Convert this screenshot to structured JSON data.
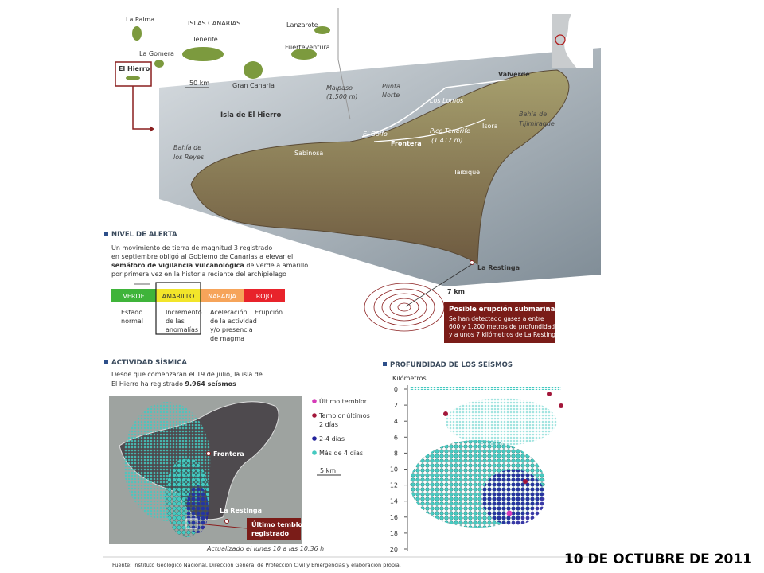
{
  "inset": {
    "title": "ISLAS CANARIAS",
    "islands": [
      "La Palma",
      "Lanzarote",
      "Tenerife",
      "La Gomera",
      "Fuerteventura",
      "El Hierro",
      "Gran Canaria"
    ],
    "scale": "50 km"
  },
  "island_map": {
    "title": "Isla de El Hierro",
    "places": {
      "malpaso": "Malpaso",
      "malpaso_alt": "(1.500 m)",
      "punta_norte_1": "Punta",
      "punta_norte_2": "Norte",
      "valverde": "Valverde",
      "los_lomos": "Los Lomos",
      "tijimiraque_1": "Bahía de",
      "tijimiraque_2": "Tijimiraque",
      "el_golfo": "El Golfo",
      "pico": "Pico Tenerife",
      "pico_alt": "(1.417 m)",
      "frontera": "Frontera",
      "isora": "Isora",
      "reyes_1": "Bahía de",
      "reyes_2": "los Reyes",
      "sabinosa": "Sabinosa",
      "taibique": "Taibique",
      "la_restinga": "La Restinga"
    },
    "distance": "7 km",
    "eruption": {
      "title": "Posible erupción submarina",
      "lines": [
        "Se han detectado gases a  entre",
        "600 y 1.200 metros de profundidad",
        "y a unos 7 kilómetros de La Restinga."
      ]
    }
  },
  "alert": {
    "title": "NIVEL DE ALERTA",
    "line1": "Un movimiento de tierra de magnitud 3 registrado",
    "line2": "en septiembre obligó al Gobierno de Canarias a elevar el",
    "line3_bold": "semáforo de vigilancia vulcanológica",
    "line3": " de verde a amarillo",
    "line4": "por primera vez en la historia reciente del archipiélago",
    "levels": [
      {
        "name": "VERDE",
        "color": "#3fb43a",
        "text": [
          "Estado",
          "normal"
        ]
      },
      {
        "name": "AMARILLO",
        "color": "#f2e52a",
        "text": [
          "Incremento",
          "de las",
          "anomalías"
        ]
      },
      {
        "name": "NARANJA",
        "color": "#f6a45a",
        "text": [
          "Aceleración",
          "de la actividad",
          "y/o presencia",
          "de magma"
        ]
      },
      {
        "name": "ROJO",
        "color": "#e8232b",
        "text": [
          "Erupción"
        ]
      }
    ]
  },
  "seismic": {
    "title": "ACTIVIDAD SÍSMICA",
    "line1": "Desde que comenzaran el 19 de julio, la isla de",
    "line2": "El Hierro ha registrado ",
    "line2_bold": "9.964 seísmos",
    "legend": [
      {
        "lines": [
          "Último temblor"
        ],
        "color": "#d63bb8"
      },
      {
        "lines": [
          "Temblor últimos",
          "2 días"
        ],
        "color": "#a3173a"
      },
      {
        "lines": [
          "2-4 días"
        ],
        "color": "#23239c"
      },
      {
        "lines": [
          "Más de 4 días"
        ],
        "color": "#45c9c0"
      }
    ],
    "scale": "5 km",
    "frontera": "Frontera",
    "la_restinga": "La Restinga",
    "last_1": "Último temblor",
    "last_2": "registrado",
    "updated": "Actualizado el lunes 10 a las 10.36 h"
  },
  "depth": {
    "title": "PROFUNDIDAD DE LOS SEÍSMOS",
    "axis_label": "Kilómetros",
    "ylim": [
      0,
      20
    ],
    "yticks": [
      0,
      2,
      4,
      6,
      8,
      10,
      12,
      14,
      16,
      18,
      20
    ]
  },
  "source": "Fuente: Instituto Geológico Nacional, Dirección General de Protección Civil y Emergencias y elaboración propia.",
  "date": "10 DE OCTUBRE DE 2011"
}
